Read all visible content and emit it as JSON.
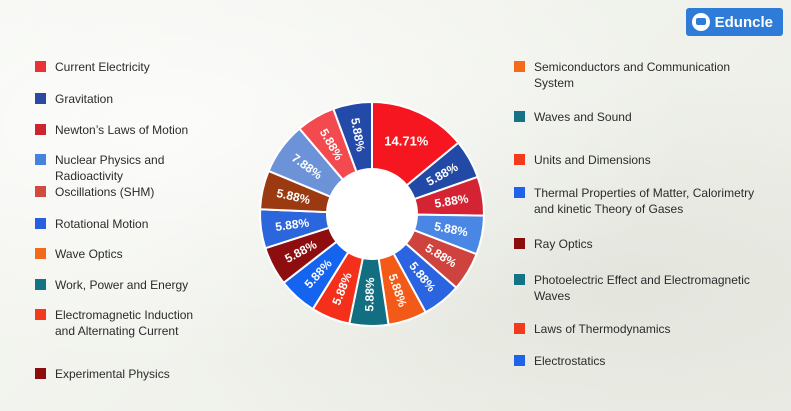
{
  "brand": {
    "name": "Eduncle"
  },
  "colors": {
    "background": "#f3f4ef",
    "brand": "#2f7bd8",
    "separator": "#ffffff"
  },
  "chart_data": {
    "type": "pie",
    "subtype": "donut",
    "title": "",
    "start_angle_deg": 0,
    "slices": [
      {
        "label": "Semiconductors and Communication System",
        "value": 14.71,
        "display": "14.71%",
        "color": "#f5161f"
      },
      {
        "label": "Waves and Sound",
        "value": 5.88,
        "display": "5.88%",
        "color": "#2349a6"
      },
      {
        "label": "Units and Dimensions",
        "value": 5.88,
        "display": "5.88%",
        "color": "#d42434"
      },
      {
        "label": "Thermal Properties of Matter, Calorimetry and kinetic Theory of Gases",
        "value": 5.88,
        "display": "5.88%",
        "color": "#4a86e4"
      },
      {
        "label": "Ray Optics",
        "value": 5.88,
        "display": "5.88%",
        "color": "#cf433e"
      },
      {
        "label": "Photoelectric Effect and Electromagnetic Waves",
        "value": 5.88,
        "display": "5.88%",
        "color": "#2a64e0"
      },
      {
        "label": "Laws of Thermodynamics",
        "value": 5.88,
        "display": "5.88%",
        "color": "#f35a18"
      },
      {
        "label": "Electrostatics",
        "value": 5.88,
        "display": "5.88%",
        "color": "#126f82"
      },
      {
        "label": "Current Electricity",
        "value": 5.88,
        "display": "5.88%",
        "color": "#f4301b"
      },
      {
        "label": "Gravitation",
        "value": 5.88,
        "display": "5.88%",
        "color": "#1564f0"
      },
      {
        "label": "Newton’s Laws of Motion",
        "value": 5.88,
        "display": "5.88%",
        "color": "#8e0d0f"
      },
      {
        "label": "Nuclear Physics and Radioactivity",
        "value": 5.88,
        "display": "5.88%",
        "color": "#2c66dc"
      },
      {
        "label": "Oscillations (SHM)",
        "value": 5.88,
        "display": "5.88%",
        "color": "#9b3a10"
      },
      {
        "label": "Rotational Motion",
        "value": 7.88,
        "display": "7.88%",
        "color": "#6c93d8"
      },
      {
        "label": "Wave Optics",
        "value": 5.88,
        "display": "5.88%",
        "color": "#f24a4f"
      },
      {
        "label": "Work, Power and Energy",
        "value": 5.88,
        "display": "5.88%",
        "color": "#234aa8"
      }
    ],
    "legend": {
      "left": [
        {
          "label": "Current Electricity",
          "color": "#ea3136"
        },
        {
          "label": "Gravitation",
          "color": "#2b49a0"
        },
        {
          "label": "Newton’s Laws of Motion",
          "color": "#cc2430"
        },
        {
          "label": "Nuclear Physics and Radioactivity",
          "color": "#4583e0"
        },
        {
          "label": "Oscillations (SHM)",
          "color": "#d24a3e"
        },
        {
          "label": "Rotational Motion",
          "color": "#2560e0"
        },
        {
          "label": "Wave Optics",
          "color": "#f36a1a"
        },
        {
          "label": "Work, Power and Energy",
          "color": "#157385"
        },
        {
          "label": "Electromagnetic Induction and Alternating Current",
          "color": "#f23a1f"
        },
        {
          "label": "Experimental Physics",
          "color": "#8b0c0c"
        }
      ],
      "right": [
        {
          "label": "Semiconductors and Communication System",
          "color": "#f36a1a"
        },
        {
          "label": "Waves and Sound",
          "color": "#157385"
        },
        {
          "label": "Units and Dimensions",
          "color": "#f23a1f"
        },
        {
          "label": "Thermal Properties of Matter, Calorimetry and kinetic Theory of Gases",
          "color": "#1f63ea"
        },
        {
          "label": "Ray Optics",
          "color": "#8b0c0c"
        },
        {
          "label": "Photoelectric Effect and Electromagnetic Waves",
          "color": "#157385"
        },
        {
          "label": "Laws of Thermodynamics",
          "color": "#f23a1f"
        },
        {
          "label": "Electrostatics",
          "color": "#1f63ea"
        }
      ]
    }
  }
}
